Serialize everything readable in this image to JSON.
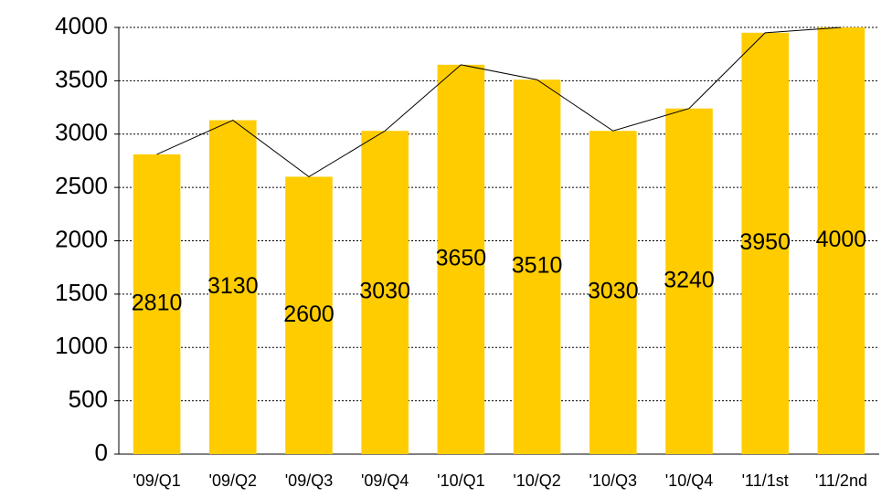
{
  "chart_data": {
    "type": "bar",
    "categories": [
      "'09/Q1",
      "'09/Q2",
      "'09/Q3",
      "'09/Q4",
      "'10/Q1",
      "'10/Q2",
      "'10/Q3",
      "'10/Q4",
      "'11/1st",
      "'11/2nd"
    ],
    "values": [
      2810,
      3130,
      2600,
      3030,
      3650,
      3510,
      3030,
      3240,
      3950,
      4000
    ],
    "color": "#ffcc00",
    "line_color": "#000000",
    "ylim": [
      0,
      4000
    ],
    "yticks": [
      0,
      500,
      1000,
      1500,
      2000,
      2500,
      3000,
      3500,
      4000
    ],
    "grid": true
  }
}
